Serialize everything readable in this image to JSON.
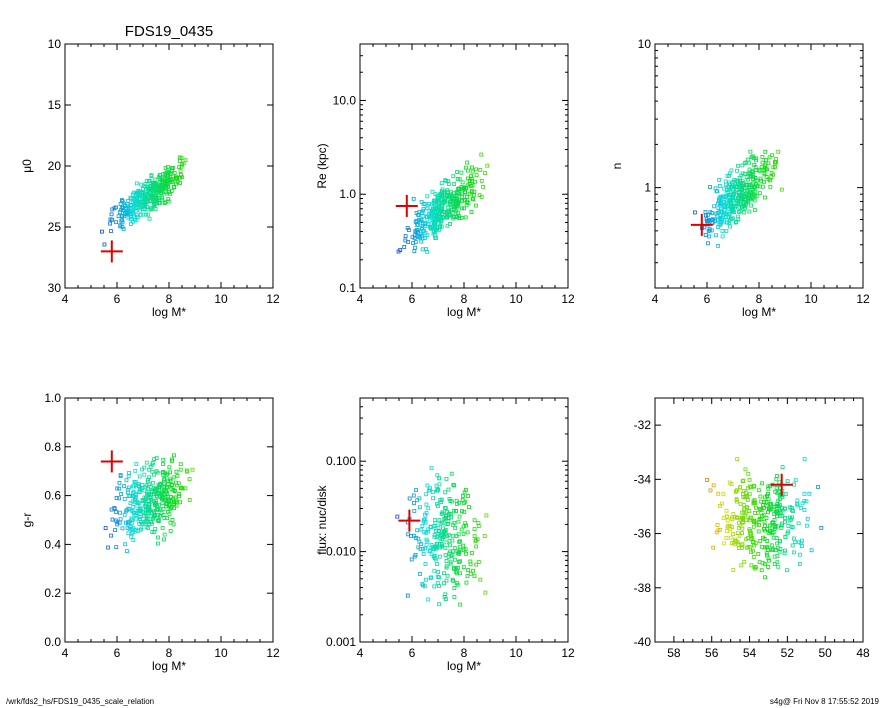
{
  "page": {
    "title": "FDS19_0435",
    "footer_left": "/wrk/fds2_hs/FDS19_0435_scale_relation",
    "footer_right": "s4g@  Fri Nov  8 17:55:52 2019"
  },
  "colors": {
    "marker_highlight": "#e00000",
    "axis": "#000000"
  },
  "chart_data": [
    {
      "id": "mu0",
      "type": "scatter",
      "title": "FDS19_0435",
      "xlabel": "log M*",
      "ylabel": "μ0",
      "xlim": [
        4,
        12
      ],
      "ylim": [
        30,
        10
      ],
      "yscale": "linear",
      "xticks": [
        4,
        6,
        8,
        10,
        12
      ],
      "xticklabels": [
        "4",
        "6",
        "8",
        "10",
        "12"
      ],
      "yticks": [
        10,
        15,
        20,
        25,
        30
      ],
      "yticklabels": [
        "10",
        "15",
        "20",
        "25",
        "30"
      ],
      "highlight": {
        "x": 5.8,
        "y": 27.0
      },
      "cloud": {
        "x0": 7.2,
        "y0": 22.4,
        "slope": -1.6,
        "sx": 1.0,
        "sy": 1.0,
        "n": 360,
        "xmin": 5.2,
        "xmax": 11.7,
        "seed": 11
      }
    },
    {
      "id": "re",
      "type": "scatter",
      "xlabel": "log M*",
      "ylabel": "Re (kpc)",
      "xlim": [
        4,
        12
      ],
      "ylim": [
        0.1,
        40
      ],
      "yscale": "log",
      "xticks": [
        4,
        6,
        8,
        10,
        12
      ],
      "xticklabels": [
        "4",
        "6",
        "8",
        "10",
        "12"
      ],
      "yticks": [
        0.1,
        1.0,
        10.0
      ],
      "yticklabels": [
        "0.1",
        "1.0",
        "10.0"
      ],
      "highlight": {
        "x": 5.8,
        "y": 0.75
      },
      "cloud": {
        "x0": 7.2,
        "y0": -0.15,
        "slope": 0.22,
        "sx": 1.0,
        "sy": 0.18,
        "n": 360,
        "xmin": 5.2,
        "xmax": 11.7,
        "seed": 23
      }
    },
    {
      "id": "n",
      "type": "scatter",
      "xlabel": "log M*",
      "ylabel": "n",
      "xlim": [
        4,
        12
      ],
      "ylim": [
        0.2,
        10
      ],
      "yscale": "log",
      "xticks": [
        4,
        6,
        8,
        10,
        12
      ],
      "xticklabels": [
        "4",
        "6",
        "8",
        "10",
        "12"
      ],
      "yticks": [
        1,
        10
      ],
      "yticklabels": [
        "1",
        "10"
      ],
      "highlight": {
        "x": 5.8,
        "y": 0.55
      },
      "cloud": {
        "x0": 7.2,
        "y0": -0.05,
        "slope": 0.14,
        "sx": 1.0,
        "sy": 0.13,
        "n": 360,
        "xmin": 5.2,
        "xmax": 11.7,
        "seed": 37
      }
    },
    {
      "id": "gr",
      "type": "scatter",
      "xlabel": "log M*",
      "ylabel": "g-r",
      "xlim": [
        4,
        12
      ],
      "ylim": [
        0.0,
        1.0
      ],
      "yscale": "linear",
      "xticks": [
        4,
        6,
        8,
        10,
        12
      ],
      "xticklabels": [
        "4",
        "6",
        "8",
        "10",
        "12"
      ],
      "yticks": [
        0.0,
        0.2,
        0.4,
        0.6,
        0.8,
        1.0
      ],
      "yticklabels": [
        "0.0",
        "0.2",
        "0.4",
        "0.6",
        "0.8",
        "1.0"
      ],
      "highlight": {
        "x": 5.8,
        "y": 0.74
      },
      "cloud": {
        "x0": 7.2,
        "y0": 0.58,
        "slope": 0.035,
        "sx": 1.0,
        "sy": 0.1,
        "n": 360,
        "xmin": 5.2,
        "xmax": 11.7,
        "seed": 41
      }
    },
    {
      "id": "flux",
      "type": "scatter",
      "xlabel": "log M*",
      "ylabel": "flux: nuc/disk",
      "xlim": [
        4,
        12
      ],
      "ylim": [
        0.001,
        0.5
      ],
      "yscale": "log",
      "xticks": [
        4,
        6,
        8,
        10,
        12
      ],
      "xticklabels": [
        "4",
        "6",
        "8",
        "10",
        "12"
      ],
      "yticks": [
        0.001,
        0.01,
        0.1
      ],
      "yticklabels": [
        "0.001",
        "0.010",
        "0.100"
      ],
      "highlight": {
        "x": 5.9,
        "y": 0.022
      },
      "cloud": {
        "x0": 7.2,
        "y0": -1.8,
        "slope": -0.05,
        "sx": 1.0,
        "sy": 0.45,
        "n": 280,
        "xmin": 5.2,
        "xmax": 11.5,
        "seed": 53
      }
    },
    {
      "id": "radec",
      "type": "scatter",
      "xlabel": "",
      "ylabel": "",
      "xlim": [
        59,
        48
      ],
      "ylim": [
        -40,
        -31
      ],
      "yscale": "linear",
      "xticks": [
        58,
        56,
        54,
        52,
        50,
        48
      ],
      "xticklabels": [
        "58",
        "56",
        "54",
        "52",
        "50",
        "48"
      ],
      "yticks": [
        -40,
        -38,
        -36,
        -34,
        -32
      ],
      "yticklabels": [
        "-40",
        "-38",
        "-36",
        "-34",
        "-32"
      ],
      "highlight": {
        "x": 52.3,
        "y": -34.2
      },
      "cloud": {
        "x0": 53.5,
        "y0": -35.5,
        "slope": 0,
        "sx": 1.8,
        "sy": 1.2,
        "n": 330,
        "xmin": 49.3,
        "xmax": 57.5,
        "seed": 67
      }
    }
  ]
}
